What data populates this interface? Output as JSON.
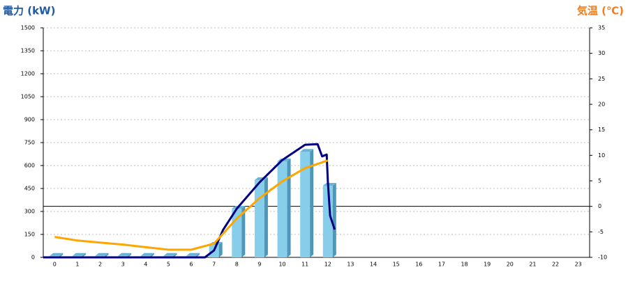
{
  "chart_data": {
    "type": "bar",
    "title_left": "電力 (kW)",
    "title_right": "気温 (℃)",
    "categories": [
      "0",
      "1",
      "2",
      "3",
      "4",
      "5",
      "6",
      "7",
      "8",
      "9",
      "10",
      "11",
      "12",
      "13",
      "14",
      "15",
      "16",
      "17",
      "18",
      "19",
      "20",
      "21",
      "22",
      "23"
    ],
    "series": [
      {
        "type": "bar",
        "color": "#87ceeb",
        "values": [
          10,
          10,
          10,
          10,
          10,
          10,
          10,
          82,
          318,
          505,
          627,
          690,
          468,
          null,
          null,
          null,
          null,
          null,
          null,
          null,
          null,
          null,
          null,
          null
        ]
      },
      {
        "type": "line",
        "color": "#000080",
        "x": [
          -0.5,
          6.6,
          7,
          7.4,
          8,
          9,
          10,
          11,
          11.55,
          11.75,
          11.95,
          12.0,
          12.1,
          12.3
        ],
        "values": [
          0,
          0,
          45,
          180,
          318,
          490,
          636,
          736,
          740,
          660,
          672,
          500,
          272,
          182
        ]
      },
      {
        "type": "line",
        "color": "#ffa500",
        "axis": "y2",
        "values": [
          -6.0,
          -6.7,
          -7.1,
          -7.5,
          -8.0,
          -8.5,
          -8.5,
          -7.3,
          -2.4,
          1.6,
          4.9,
          7.5,
          9.0,
          null,
          null,
          null,
          null,
          null,
          null,
          null,
          null,
          null,
          null,
          null
        ]
      }
    ],
    "ylim": [
      0,
      1500
    ],
    "yticks": [
      0,
      150,
      300,
      450,
      600,
      750,
      900,
      1050,
      1200,
      1350,
      1500
    ],
    "y2lim": [
      -10,
      35
    ],
    "y2ticks": [
      -10,
      -5,
      0,
      5,
      10,
      15,
      20,
      25,
      30,
      35
    ],
    "grid": true
  }
}
